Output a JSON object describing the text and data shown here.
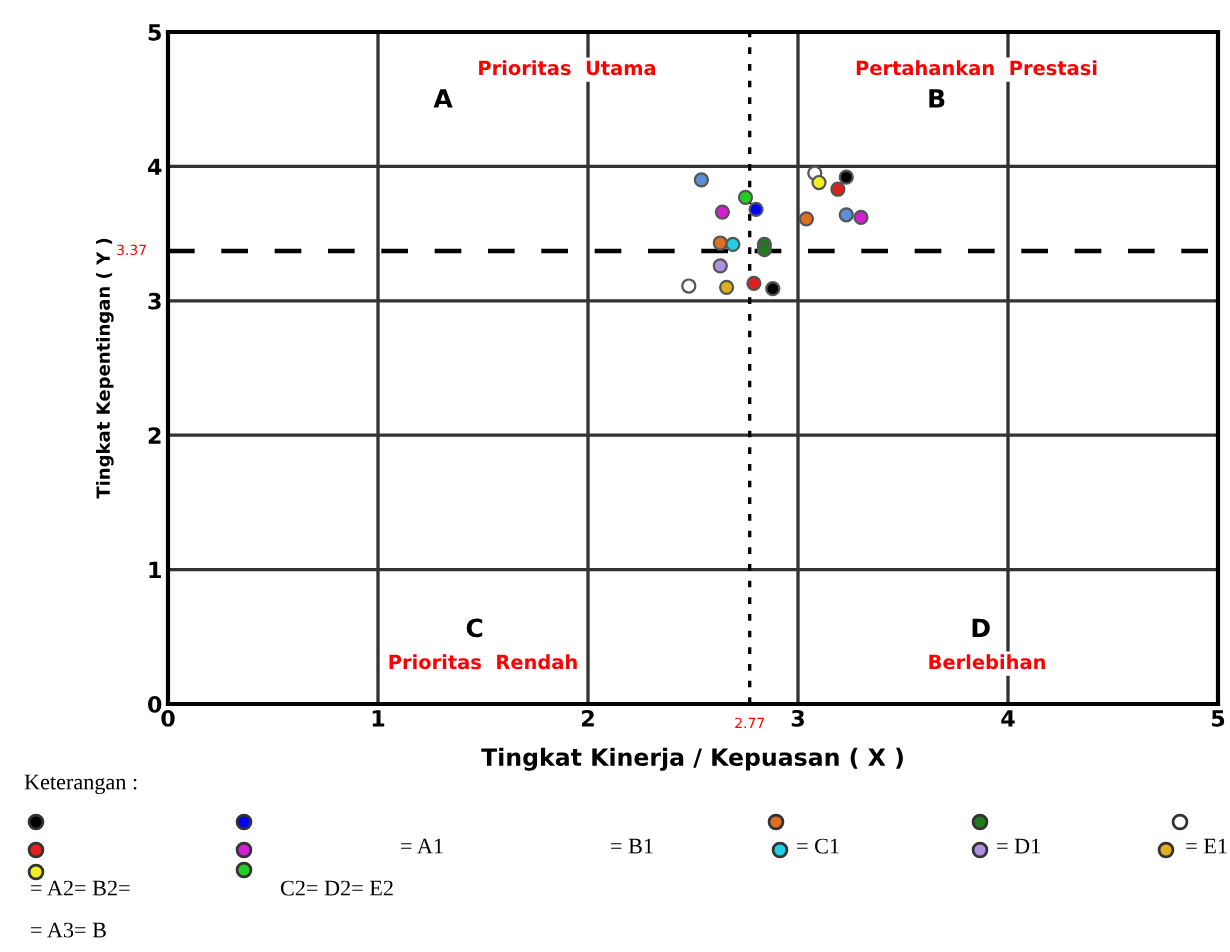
{
  "chart_data": {
    "type": "scatter",
    "xlabel": "Tingkat Kinerja / Kepuasan ( X )",
    "ylabel": "Tingkat Kepentingan ( Y )",
    "xlim": [
      0,
      5
    ],
    "ylim": [
      0,
      5
    ],
    "xticks": [
      0,
      1,
      2,
      3,
      4,
      5
    ],
    "yticks": [
      0,
      1,
      2,
      3,
      4,
      5
    ],
    "grid": true,
    "marker": "circle",
    "series": [
      {
        "color": "#000000",
        "x": [
          2.88,
          3.23
        ],
        "values": [
          3.09,
          3.92
        ]
      },
      {
        "color": "#0000ff",
        "x": [
          2.8,
          2.54,
          3.23
        ],
        "values": [
          3.68,
          3.9,
          3.64
        ],
        "colors": [
          "#0000ff",
          "#5b8fd9",
          "#5b8fd9"
        ]
      },
      {
        "color": "#e07020",
        "x": [
          2.63,
          3.04
        ],
        "values": [
          3.43,
          3.61
        ]
      },
      {
        "color": "#1e7b1e",
        "x": [
          2.84,
          2.84
        ],
        "values": [
          3.42,
          3.38
        ]
      },
      {
        "color": "#ffffff",
        "x": [
          2.48,
          3.08
        ],
        "values": [
          3.11,
          3.95
        ]
      },
      {
        "color": "#e02020",
        "x": [
          2.79,
          3.19
        ],
        "values": [
          3.13,
          3.83
        ]
      },
      {
        "color": "#d020d0",
        "x": [
          2.64,
          3.3
        ],
        "values": [
          3.66,
          3.62
        ]
      },
      {
        "color": "#20d0e0",
        "x": [
          2.69
        ],
        "values": [
          3.42
        ]
      },
      {
        "color": "#b090e0",
        "x": [
          2.63
        ],
        "values": [
          3.26
        ]
      },
      {
        "color": "#e0b020",
        "x": [
          2.66
        ],
        "values": [
          3.1
        ]
      },
      {
        "color": "#f0f020",
        "x": [
          3.1
        ],
        "values": [
          3.88
        ]
      },
      {
        "color": "#20d020",
        "x": [
          2.75
        ],
        "values": [
          3.77
        ]
      }
    ],
    "ref_lines": [
      {
        "axis": "y",
        "value": 3.37,
        "label": "3.37",
        "color": "#000000",
        "line_style": "dashed"
      },
      {
        "axis": "x",
        "value": 2.77,
        "label": "2.77",
        "color": "#000000",
        "line_style": "dotted"
      }
    ],
    "annotations": [
      "Prioritas  Utama",
      "A",
      "Pertahankan  Prestasi",
      "B",
      "Prioritas  Rendah",
      "C",
      "Berlebihan",
      "D",
      "Keterangan :",
      "= A1",
      "= B1",
      "= C1",
      "= D1",
      "= E1",
      "= A2= B2=",
      "C2= D2= E2",
      "= A3= B"
    ]
  }
}
